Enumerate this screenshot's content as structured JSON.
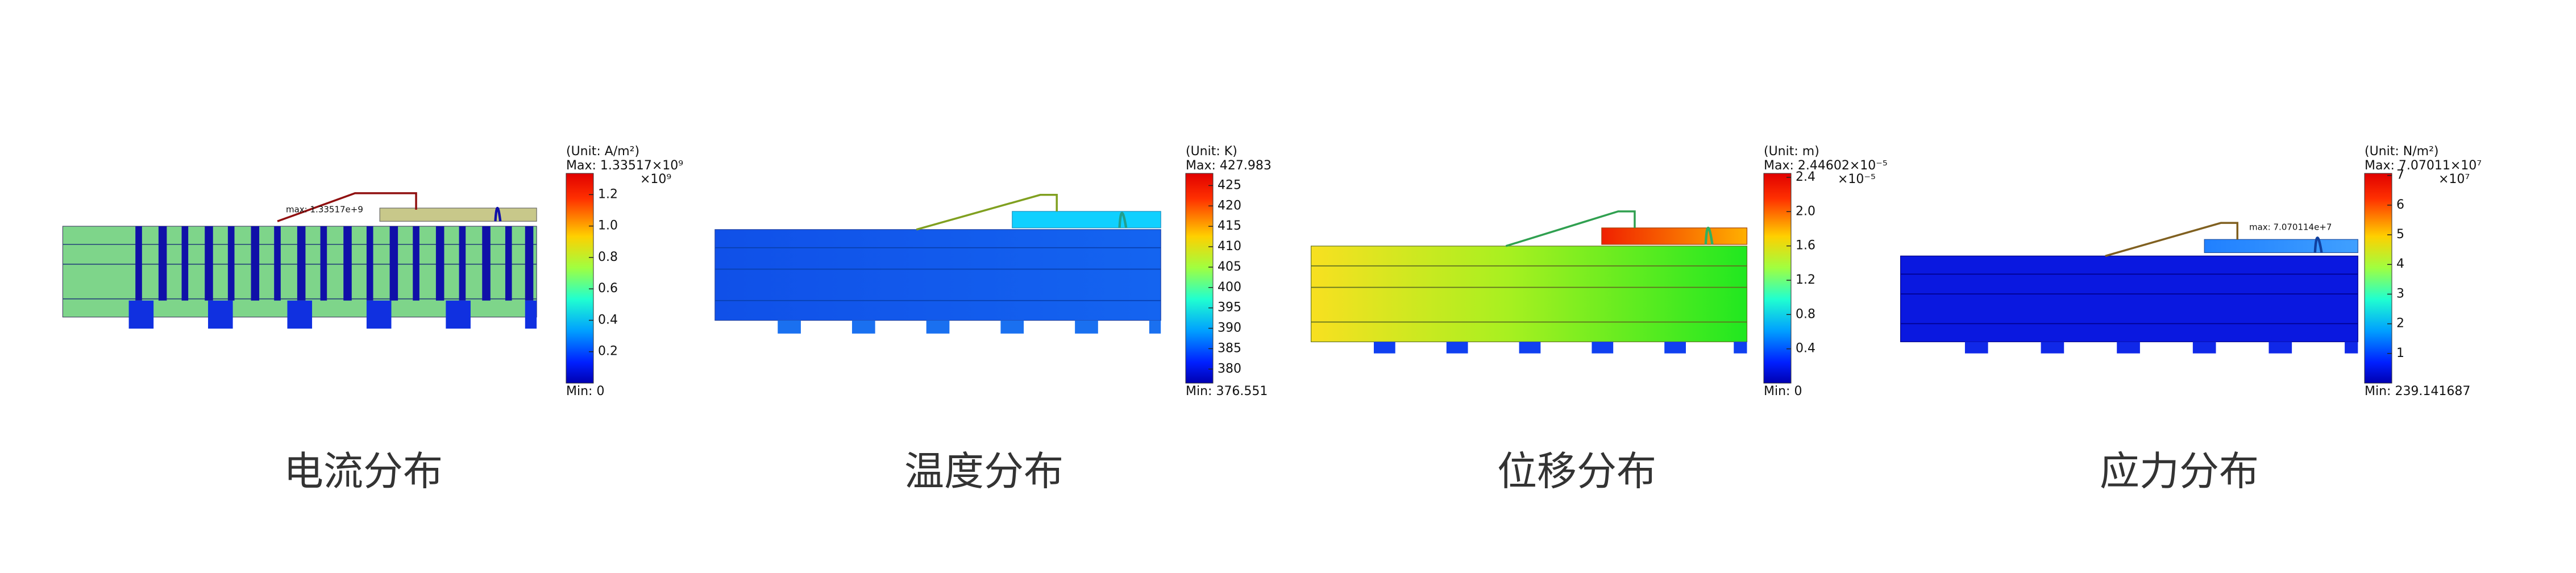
{
  "panels": [
    {
      "caption": "电流分布",
      "annotation": "max: 1.33517e+9",
      "colorbar": {
        "unit": "(Unit: A/m²)",
        "max": {
          "value": 1335170000,
          "label": "Max: 1.33517×10⁹"
        },
        "min": {
          "value": 0,
          "label": "Min: 0"
        },
        "multiplier": "×10⁹",
        "ticks": [
          {
            "value": 200000000,
            "label": "0.2"
          },
          {
            "value": 400000000,
            "label": "0.4"
          },
          {
            "value": 600000000,
            "label": "0.6"
          },
          {
            "value": 800000000,
            "label": "0.8"
          },
          {
            "value": 1000000000,
            "label": "1.0"
          },
          {
            "value": 1200000000,
            "label": "1.2"
          }
        ]
      }
    },
    {
      "caption": "温度分布",
      "colorbar": {
        "unit": "(Unit: K)",
        "max": {
          "value": 427.983,
          "label": "Max: 427.983"
        },
        "min": {
          "value": 376.551,
          "label": "Min: 376.551"
        },
        "ticks": [
          380,
          385,
          390,
          395,
          400,
          405,
          410,
          415,
          420,
          425
        ]
      }
    },
    {
      "caption": "位移分布",
      "colorbar": {
        "unit": "(Unit: m)",
        "max": {
          "value": 2.44602e-05,
          "label": "Max: 2.44602×10⁻⁵"
        },
        "min": {
          "value": 0,
          "label": "Min: 0"
        },
        "multiplier": "×10⁻⁵",
        "ticks": [
          {
            "value": 4e-06,
            "label": "0.4"
          },
          {
            "value": 8e-06,
            "label": "0.8"
          },
          {
            "value": 1.2e-05,
            "label": "1.2"
          },
          {
            "value": 1.6e-05,
            "label": "1.6"
          },
          {
            "value": 2e-05,
            "label": "2.0"
          },
          {
            "value": 2.4e-05,
            "label": "2.4"
          }
        ]
      }
    },
    {
      "caption": "应力分布",
      "annotation": "max: 7.070114e+7",
      "colorbar": {
        "unit": "(Unit: N/m²)",
        "max": {
          "value": 70701100,
          "label": "Max: 7.07011×10⁷"
        },
        "min": {
          "value": 239.141687,
          "label": "Min: 239.141687"
        },
        "multiplier": "×10⁷",
        "ticks": [
          {
            "value": 10000000,
            "label": "1"
          },
          {
            "value": 20000000,
            "label": "2"
          },
          {
            "value": 30000000,
            "label": "3"
          },
          {
            "value": 40000000,
            "label": "4"
          },
          {
            "value": 50000000,
            "label": "5"
          },
          {
            "value": 60000000,
            "label": "6"
          },
          {
            "value": 70000000,
            "label": "7"
          }
        ]
      }
    }
  ]
}
